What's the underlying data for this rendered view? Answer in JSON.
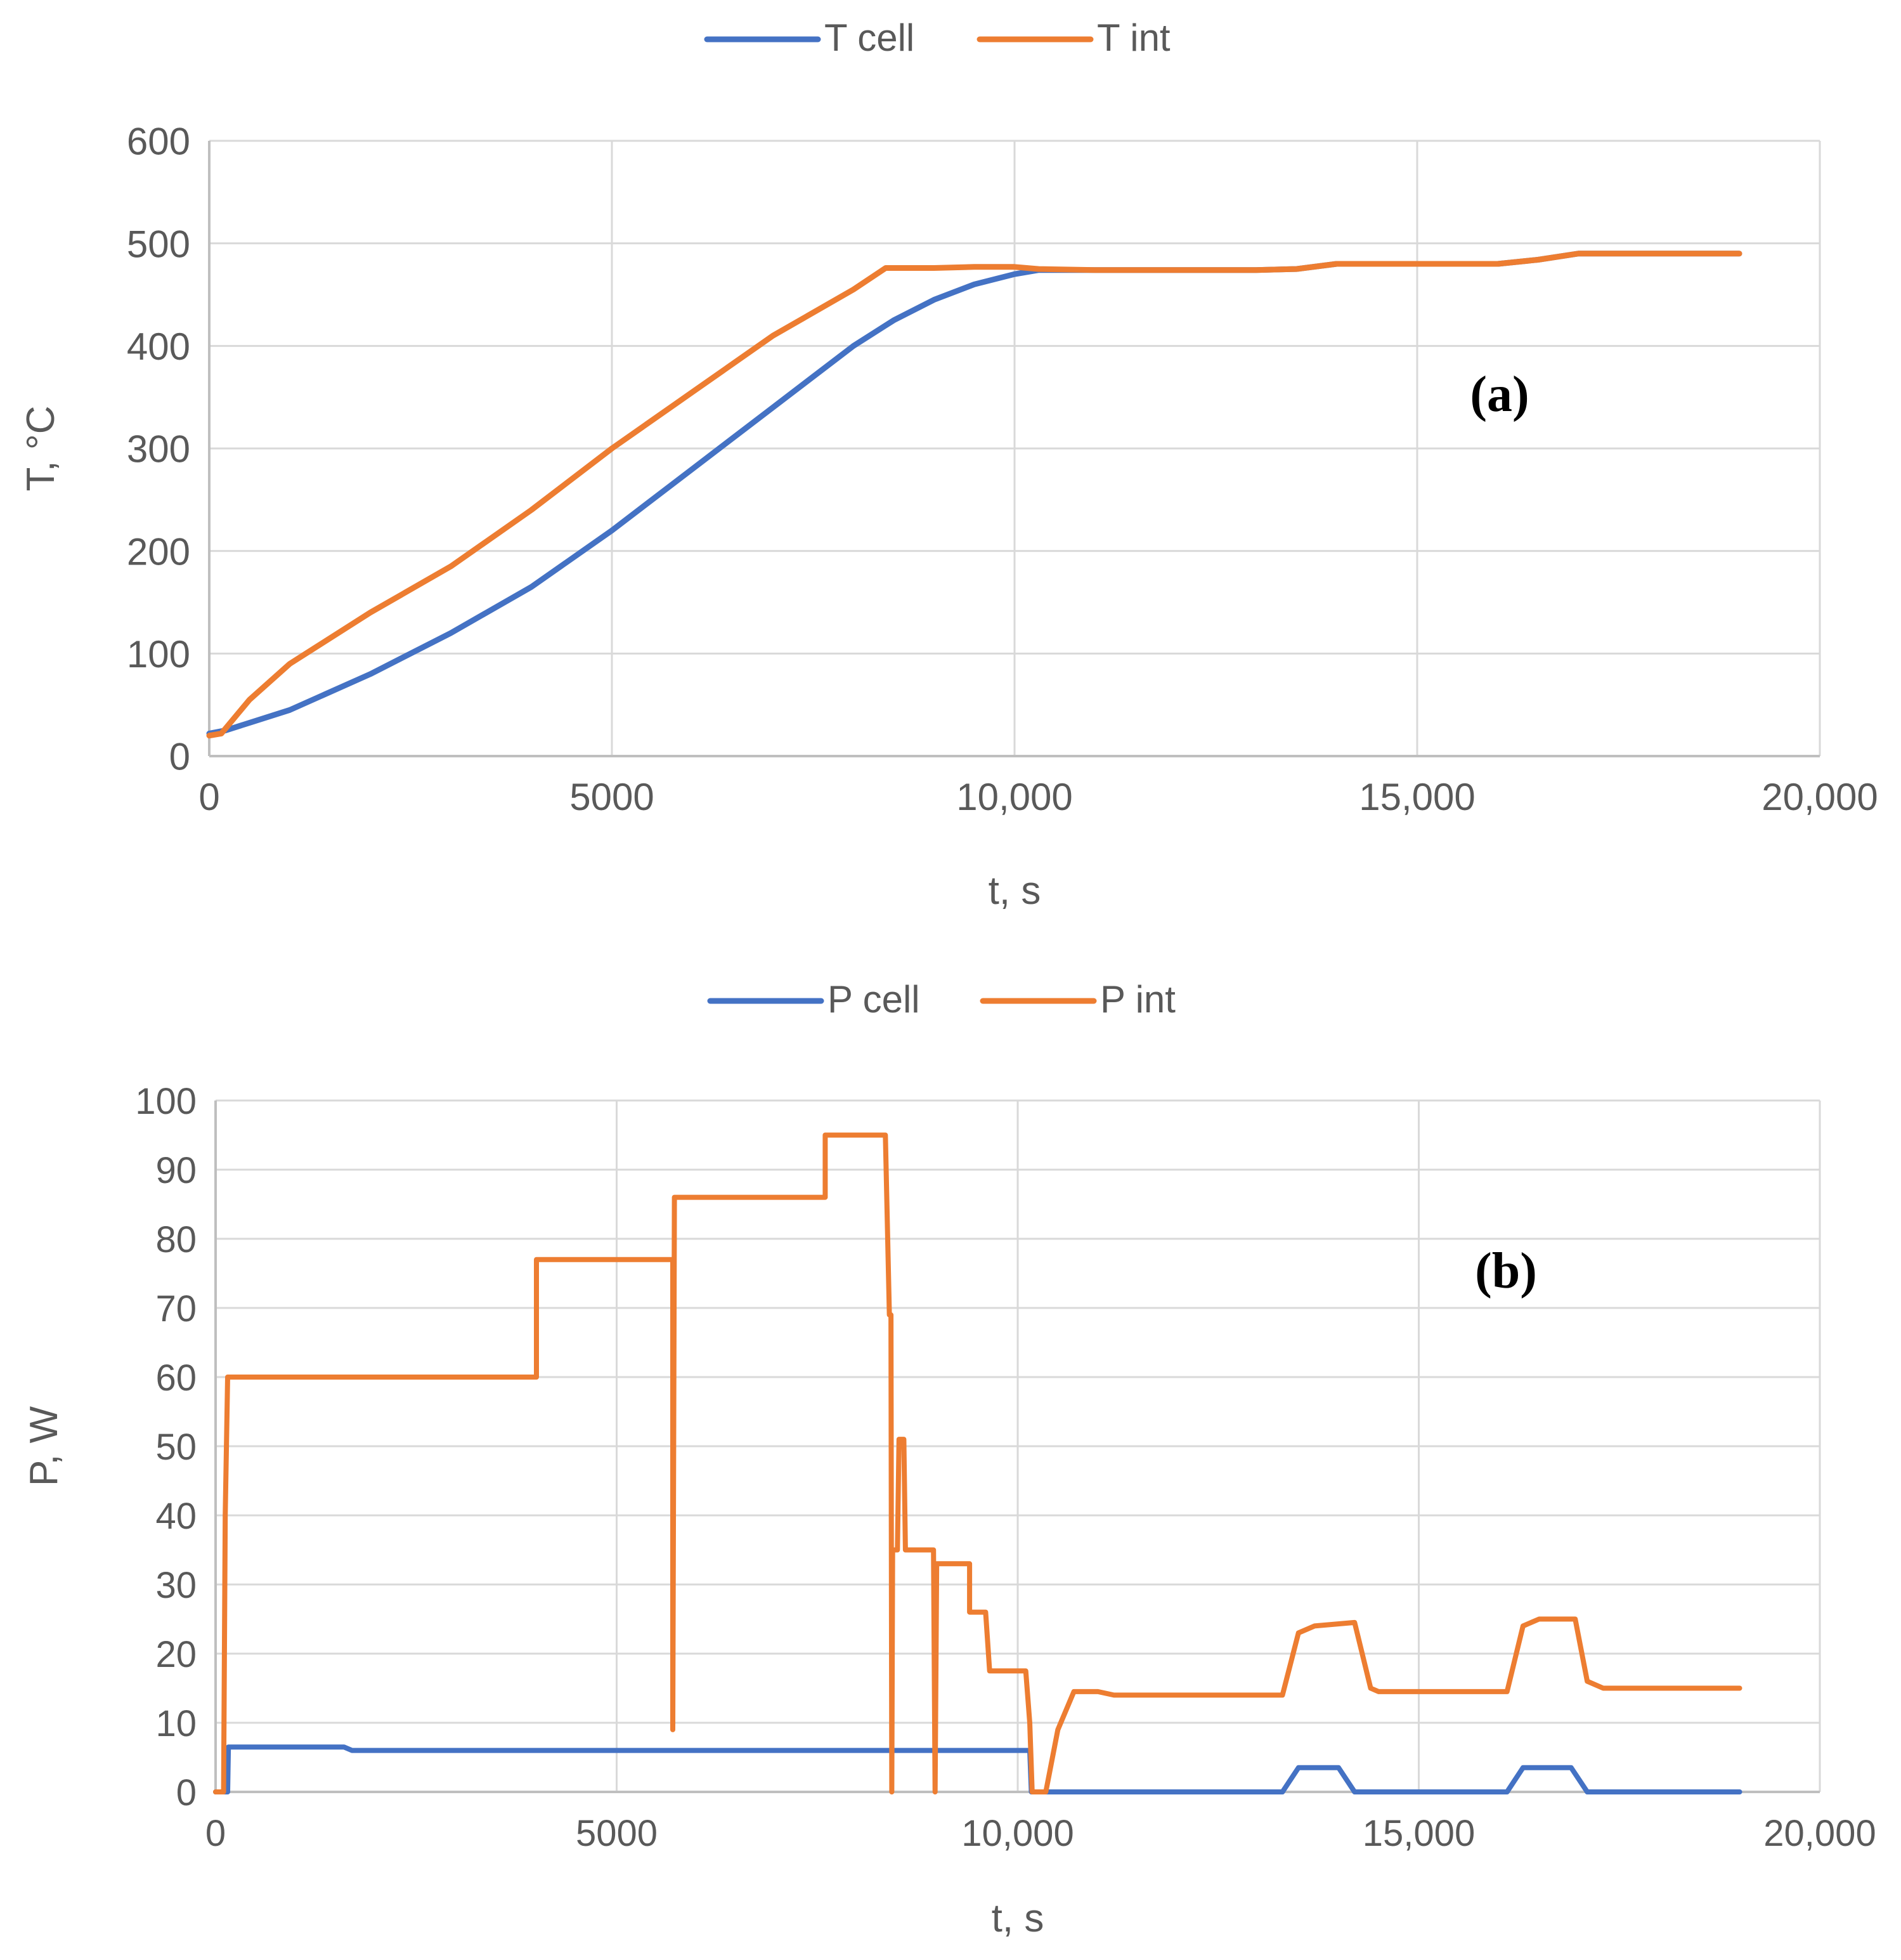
{
  "chart_data": [
    {
      "type": "line",
      "panel_label": "(a)",
      "title": "",
      "xlabel": "t, s",
      "ylabel": "T, °C",
      "xlim": [
        0,
        20000
      ],
      "ylim": [
        0,
        600
      ],
      "x_ticks": [
        0,
        5000,
        10000,
        15000,
        20000
      ],
      "x_tick_labels": [
        "0",
        "5000",
        "10,000",
        "15,000",
        "20,000"
      ],
      "y_ticks": [
        0,
        100,
        200,
        300,
        400,
        500,
        600
      ],
      "y_tick_labels": [
        "0",
        "100",
        "200",
        "300",
        "400",
        "500",
        "600"
      ],
      "grid": true,
      "legend_position": "top-center",
      "series": [
        {
          "name": "T cell",
          "color": "#4472c4",
          "points": [
            [
              0,
              22
            ],
            [
              200,
              25
            ],
            [
              1000,
              45
            ],
            [
              2000,
              80
            ],
            [
              3000,
              120
            ],
            [
              4000,
              165
            ],
            [
              5000,
              220
            ],
            [
              6000,
              280
            ],
            [
              7000,
              340
            ],
            [
              8000,
              400
            ],
            [
              8500,
              425
            ],
            [
              9000,
              445
            ],
            [
              9500,
              460
            ],
            [
              10000,
              470
            ],
            [
              10300,
              474
            ],
            [
              11000,
              474
            ],
            [
              12000,
              474
            ],
            [
              13000,
              474
            ],
            [
              13500,
              475
            ],
            [
              14000,
              480
            ],
            [
              15000,
              480
            ],
            [
              16000,
              480
            ],
            [
              16500,
              484
            ],
            [
              17000,
              490
            ],
            [
              18000,
              490
            ],
            [
              19000,
              490
            ]
          ]
        },
        {
          "name": "T int",
          "color": "#ed7d31",
          "points": [
            [
              0,
              20
            ],
            [
              150,
              22
            ],
            [
              500,
              55
            ],
            [
              1000,
              90
            ],
            [
              2000,
              140
            ],
            [
              3000,
              185
            ],
            [
              4000,
              240
            ],
            [
              5000,
              300
            ],
            [
              6000,
              355
            ],
            [
              7000,
              410
            ],
            [
              8000,
              455
            ],
            [
              8400,
              476
            ],
            [
              9000,
              476
            ],
            [
              9500,
              477
            ],
            [
              10000,
              477
            ],
            [
              10300,
              475
            ],
            [
              11000,
              474
            ],
            [
              12000,
              474
            ],
            [
              13000,
              474
            ],
            [
              13500,
              475
            ],
            [
              14000,
              480
            ],
            [
              15000,
              480
            ],
            [
              16000,
              480
            ],
            [
              16500,
              484
            ],
            [
              17000,
              490
            ],
            [
              18000,
              490
            ],
            [
              19000,
              490
            ]
          ]
        }
      ]
    },
    {
      "type": "line",
      "panel_label": "(b)",
      "title": "",
      "xlabel": "t, s",
      "ylabel": "P, W",
      "xlim": [
        0,
        20000
      ],
      "ylim": [
        0,
        100
      ],
      "x_ticks": [
        0,
        5000,
        10000,
        15000,
        20000
      ],
      "x_tick_labels": [
        "0",
        "5000",
        "10,000",
        "15,000",
        "20,000"
      ],
      "y_ticks": [
        0,
        10,
        20,
        30,
        40,
        50,
        60,
        70,
        80,
        90,
        100
      ],
      "y_tick_labels": [
        "0",
        "10",
        "20",
        "30",
        "40",
        "50",
        "60",
        "70",
        "80",
        "90",
        "100"
      ],
      "grid": true,
      "legend_position": "top-center",
      "series": [
        {
          "name": "P cell",
          "color": "#4472c4",
          "points": [
            [
              0,
              0
            ],
            [
              150,
              0
            ],
            [
              160,
              6.5
            ],
            [
              1600,
              6.5
            ],
            [
              1700,
              6
            ],
            [
              10150,
              6
            ],
            [
              10170,
              0
            ],
            [
              13300,
              0
            ],
            [
              13500,
              3.5
            ],
            [
              14000,
              3.5
            ],
            [
              14200,
              0
            ],
            [
              16100,
              0
            ],
            [
              16300,
              3.5
            ],
            [
              16900,
              3.5
            ],
            [
              17100,
              0
            ],
            [
              19000,
              0
            ]
          ]
        },
        {
          "name": "P int",
          "color": "#ed7d31",
          "points": [
            [
              0,
              0
            ],
            [
              100,
              0
            ],
            [
              120,
              40
            ],
            [
              150,
              60
            ],
            [
              4000,
              60
            ],
            [
              4000,
              77
            ],
            [
              5700,
              77
            ],
            [
              5700,
              9
            ],
            [
              5720,
              86
            ],
            [
              7600,
              86
            ],
            [
              7600,
              95
            ],
            [
              8350,
              95
            ],
            [
              8400,
              69
            ],
            [
              8420,
              69
            ],
            [
              8430,
              0
            ],
            [
              8440,
              35
            ],
            [
              8500,
              35
            ],
            [
              8520,
              51
            ],
            [
              8580,
              51
            ],
            [
              8600,
              35
            ],
            [
              8950,
              35
            ],
            [
              8970,
              0
            ],
            [
              8990,
              33
            ],
            [
              9400,
              33
            ],
            [
              9400,
              26
            ],
            [
              9600,
              26
            ],
            [
              9650,
              17.5
            ],
            [
              10100,
              17.5
            ],
            [
              10150,
              10
            ],
            [
              10180,
              0
            ],
            [
              10350,
              0
            ],
            [
              10500,
              9
            ],
            [
              10700,
              14.5
            ],
            [
              11000,
              14.5
            ],
            [
              11200,
              14
            ],
            [
              13300,
              14
            ],
            [
              13500,
              23
            ],
            [
              13700,
              24
            ],
            [
              14200,
              24.5
            ],
            [
              14400,
              15
            ],
            [
              14500,
              14.5
            ],
            [
              16100,
              14.5
            ],
            [
              16300,
              24
            ],
            [
              16500,
              25
            ],
            [
              16950,
              25
            ],
            [
              17100,
              16
            ],
            [
              17300,
              15
            ],
            [
              19000,
              15
            ]
          ]
        }
      ]
    }
  ]
}
